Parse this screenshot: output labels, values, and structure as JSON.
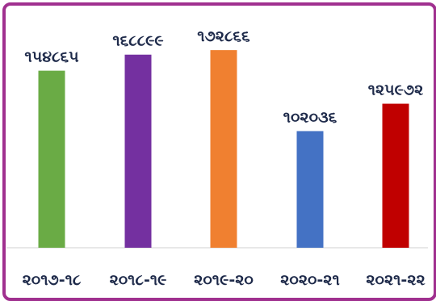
{
  "chart_data": {
    "type": "bar",
    "categories": [
      "૨૦૧૭-૧૮",
      "૨૦૧૮-૧૯",
      "૨૦૧૯-૨૦",
      "૨૦૨૦-૨૧",
      "૨૦૨૧-૨૨"
    ],
    "values": [
      154865,
      168899,
      172866,
      102036,
      125972
    ],
    "value_labels": [
      "૧૫૪૮૬૫",
      "૧૬૮૮૯૯",
      "૧૭૨૮૬૬",
      "૧૦૨૦૩૬",
      "૧૨૫૯૭૨"
    ],
    "colors": [
      "#6aab45",
      "#7430a0",
      "#f08030",
      "#4472c4",
      "#c00000"
    ],
    "ylim": [
      0,
      180000
    ],
    "grid": false,
    "legend": "none"
  },
  "frame": {
    "border_color": "#a0308f"
  }
}
